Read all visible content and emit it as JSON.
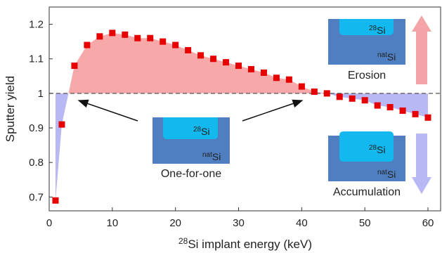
{
  "chart_data": {
    "type": "scatter",
    "x_label": {
      "sup": "28",
      "text": "Si implant energy (keV)"
    },
    "y_label": "Sputter yield",
    "x": [
      1,
      2,
      4,
      6,
      8,
      10,
      12,
      14,
      16,
      18,
      20,
      22,
      24,
      26,
      28,
      30,
      32,
      34,
      36,
      38,
      40,
      42,
      44,
      46,
      48,
      50,
      52,
      54,
      56,
      58,
      60
    ],
    "series": [
      {
        "color": "#e60000",
        "values": [
          0.69,
          0.91,
          1.08,
          1.14,
          1.165,
          1.175,
          1.17,
          1.16,
          1.16,
          1.15,
          1.14,
          1.125,
          1.11,
          1.1,
          1.09,
          1.08,
          1.07,
          1.06,
          1.045,
          1.04,
          1.02,
          1.005,
          1.0,
          0.99,
          0.985,
          0.98,
          0.965,
          0.96,
          0.95,
          0.94,
          0.93
        ]
      }
    ],
    "xlim": [
      0,
      62
    ],
    "xticks": [
      0,
      10,
      20,
      30,
      40,
      50,
      60
    ],
    "ylim": [
      0.66,
      1.25
    ],
    "yticks": [
      0.7,
      0.8,
      0.9,
      1,
      1.1,
      1.2
    ],
    "reference_line": 1,
    "above_color": "#f7a8a8",
    "below_color": "#b8b8f4",
    "insets": [
      {
        "top_label": {
          "sup": "28",
          "text": "Si"
        },
        "bottom_label": {
          "sup": "nat",
          "text": "Si"
        },
        "caption": "Erosion"
      },
      {
        "top_label": {
          "sup": "28",
          "text": "Si"
        },
        "bottom_label": {
          "sup": "nat",
          "text": "Si"
        },
        "caption": "One-for-one"
      },
      {
        "top_label": {
          "sup": "28",
          "text": "Si"
        },
        "bottom_label": {
          "sup": "nat",
          "text": "Si"
        },
        "caption": "Accumulation"
      }
    ]
  }
}
